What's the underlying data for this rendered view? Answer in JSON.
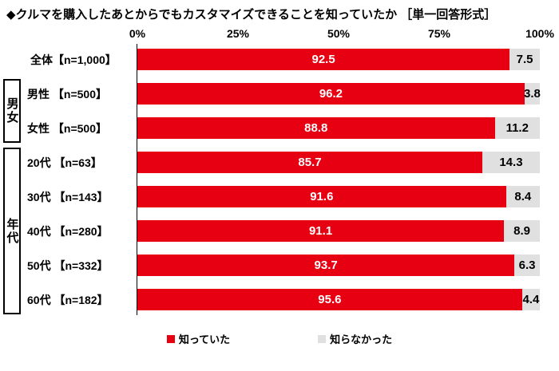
{
  "title": "◆クルマを購入したあとからでもカスタマイズできることを知っていたか ［単一回答形式］",
  "chart_data": {
    "type": "bar",
    "orientation": "horizontal",
    "stacked": true,
    "title": "◆クルマを購入したあとからでもカスタマイズできることを知っていたか ［単一回答形式］",
    "x_axis_ticks": [
      "0%",
      "25%",
      "50%",
      "75%",
      "100%"
    ],
    "xlim": [
      0,
      100
    ],
    "grid": false,
    "legend_position": "bottom",
    "categories": [
      "全体【n=1,000】",
      "男性 【n=500】",
      "女性 【n=500】",
      "20代 【n=63】",
      "30代 【n=143】",
      "40代 【n=280】",
      "50代 【n=332】",
      "60代 【n=182】"
    ],
    "groups": [
      {
        "label": "男女",
        "first_row": 1,
        "last_row": 2
      },
      {
        "label": "年代",
        "first_row": 3,
        "last_row": 7
      }
    ],
    "series": [
      {
        "name": "知っていた",
        "color": "#e60012",
        "text_color": "#ffffff",
        "values": [
          92.5,
          96.2,
          88.8,
          85.7,
          91.6,
          91.1,
          93.7,
          95.6
        ]
      },
      {
        "name": "知らなかった",
        "color": "#e0e0e0",
        "text_color": "#000000",
        "values": [
          7.5,
          3.8,
          11.2,
          14.3,
          8.4,
          8.9,
          6.3,
          4.4
        ]
      }
    ]
  }
}
